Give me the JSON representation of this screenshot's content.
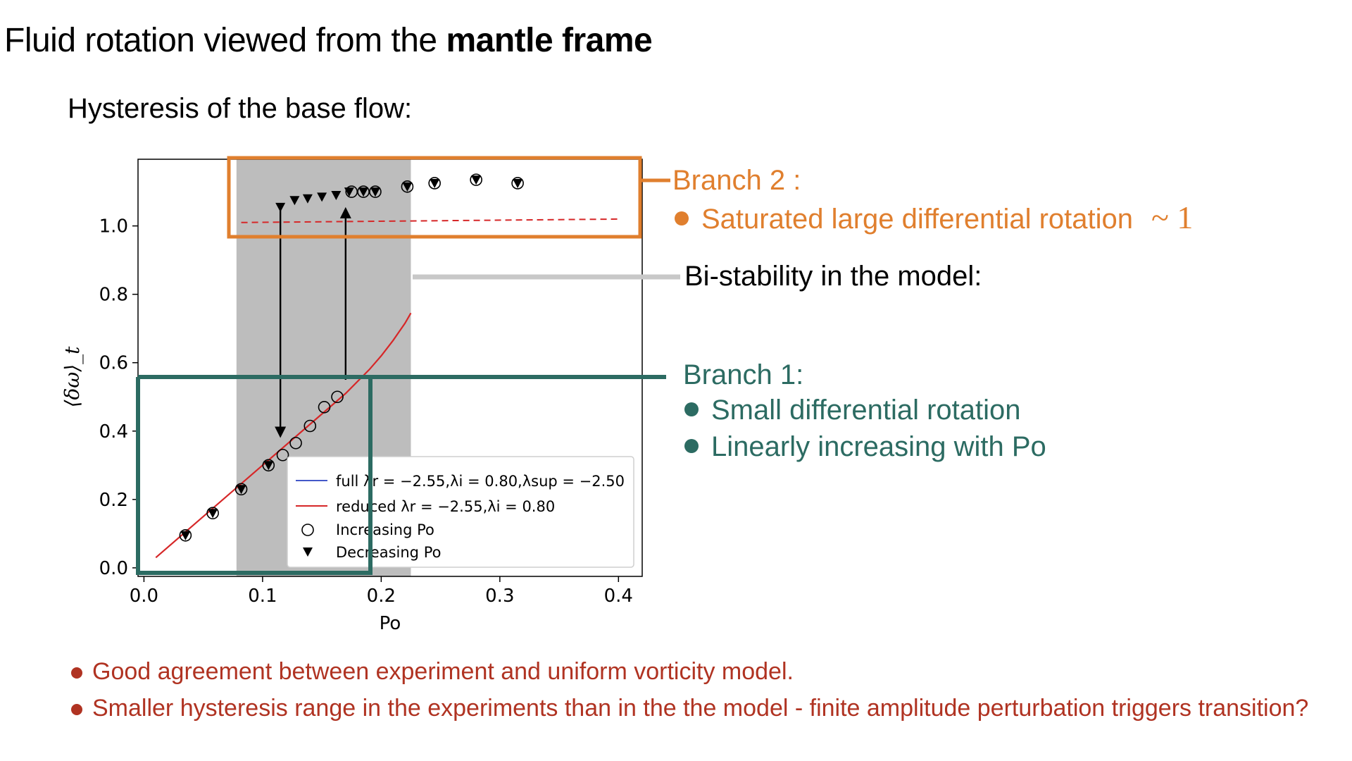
{
  "slide": {
    "title_normal": "Fluid rotation viewed from the",
    "title_bold": "mantle frame",
    "subtitle": "Hysteresis of the base flow:"
  },
  "annotations": {
    "branch2_title": "Branch 2 :",
    "branch2_item": "Saturated large differential rotation",
    "branch2_approx": "~ 1",
    "bistability": "Bi-stability in the model:",
    "branch1_title": "Branch 1:",
    "branch1_items": [
      "Small differential rotation",
      "Linearly increasing with Po"
    ]
  },
  "conclusions": [
    "Good agreement between experiment and uniform vorticity model.",
    "Smaller hysteresis range in the experiments than in the the model - finite amplitude perturbation triggers transition?"
  ],
  "colors": {
    "orange": "#E07F2E",
    "teal": "#2C6B62",
    "red_text": "#B03322",
    "curve_red": "#D62728",
    "curve_blue": "#4458C8",
    "shade": "#BDBDBD",
    "bistability_line": "#C8C8C8"
  },
  "chart_data": {
    "type": "line",
    "xlabel": "Po",
    "ylabel": "⟨δω⟩_t",
    "xlim": [
      -0.005,
      0.42
    ],
    "ylim": [
      -0.025,
      1.195
    ],
    "x_ticks": [
      0.0,
      0.1,
      0.2,
      0.3,
      0.4
    ],
    "x_tick_labels": [
      "0.0",
      "0.1",
      "0.2",
      "0.3",
      "0.4"
    ],
    "y_ticks": [
      0.0,
      0.2,
      0.4,
      0.6,
      0.8,
      1.0
    ],
    "y_tick_labels": [
      "0.0",
      "0.2",
      "0.4",
      "0.6",
      "0.8",
      "1.0"
    ],
    "shaded_region_x": [
      0.078,
      0.225
    ],
    "legend_placement": "lower right",
    "series": [
      {
        "name": "full λ_r = −2.55,λ_i = 0.80,λ_sup = −2.50",
        "legend_label": "full λr = −2.55,λi = 0.80,λsup = −2.50",
        "kind": "line",
        "x": [],
        "y": []
      },
      {
        "name": "reduced λ_r = −2.55,λ_i = 0.80",
        "legend_label": "reduced λr = −2.55,λi = 0.80",
        "kind": "line",
        "x": [
          0.01,
          0.03,
          0.05,
          0.07,
          0.09,
          0.11,
          0.13,
          0.15,
          0.17,
          0.19,
          0.2,
          0.21,
          0.215,
          0.22,
          0.225
        ],
        "y": [
          0.03,
          0.09,
          0.15,
          0.21,
          0.27,
          0.33,
          0.39,
          0.45,
          0.51,
          0.58,
          0.62,
          0.665,
          0.69,
          0.715,
          0.745
        ]
      },
      {
        "name": "Increasing Po",
        "legend_label": "Increasing Po",
        "kind": "scatter-open-circle",
        "x": [
          0.035,
          0.058,
          0.082,
          0.105,
          0.117,
          0.128,
          0.14,
          0.152,
          0.163,
          0.175,
          0.185,
          0.195,
          0.222,
          0.245,
          0.28,
          0.315
        ],
        "y": [
          0.095,
          0.16,
          0.23,
          0.3,
          0.33,
          0.365,
          0.415,
          0.47,
          0.5,
          1.1,
          1.1,
          1.1,
          1.115,
          1.125,
          1.135,
          1.125
        ]
      },
      {
        "name": "Decreasing Po",
        "legend_label": "Decreasing Po",
        "kind": "scatter-triangle",
        "x": [
          0.035,
          0.058,
          0.082,
          0.105,
          0.115,
          0.127,
          0.138,
          0.15,
          0.162,
          0.173,
          0.185,
          0.195,
          0.222,
          0.245,
          0.28,
          0.315
        ],
        "y": [
          0.095,
          0.16,
          0.23,
          0.3,
          1.055,
          1.075,
          1.08,
          1.085,
          1.09,
          1.1,
          1.1,
          1.1,
          1.115,
          1.125,
          1.135,
          1.125
        ]
      },
      {
        "name": "model upper branch (dashed)",
        "kind": "dashed-line",
        "x": [
          0.082,
          0.4
        ],
        "y": [
          1.01,
          1.02
        ]
      }
    ],
    "arrows": [
      {
        "direction": "down",
        "x": 0.115,
        "y_from": 1.055,
        "y_to": 0.38
      },
      {
        "direction": "up",
        "x": 0.17,
        "y_from": 0.55,
        "y_to": 1.055
      }
    ]
  }
}
